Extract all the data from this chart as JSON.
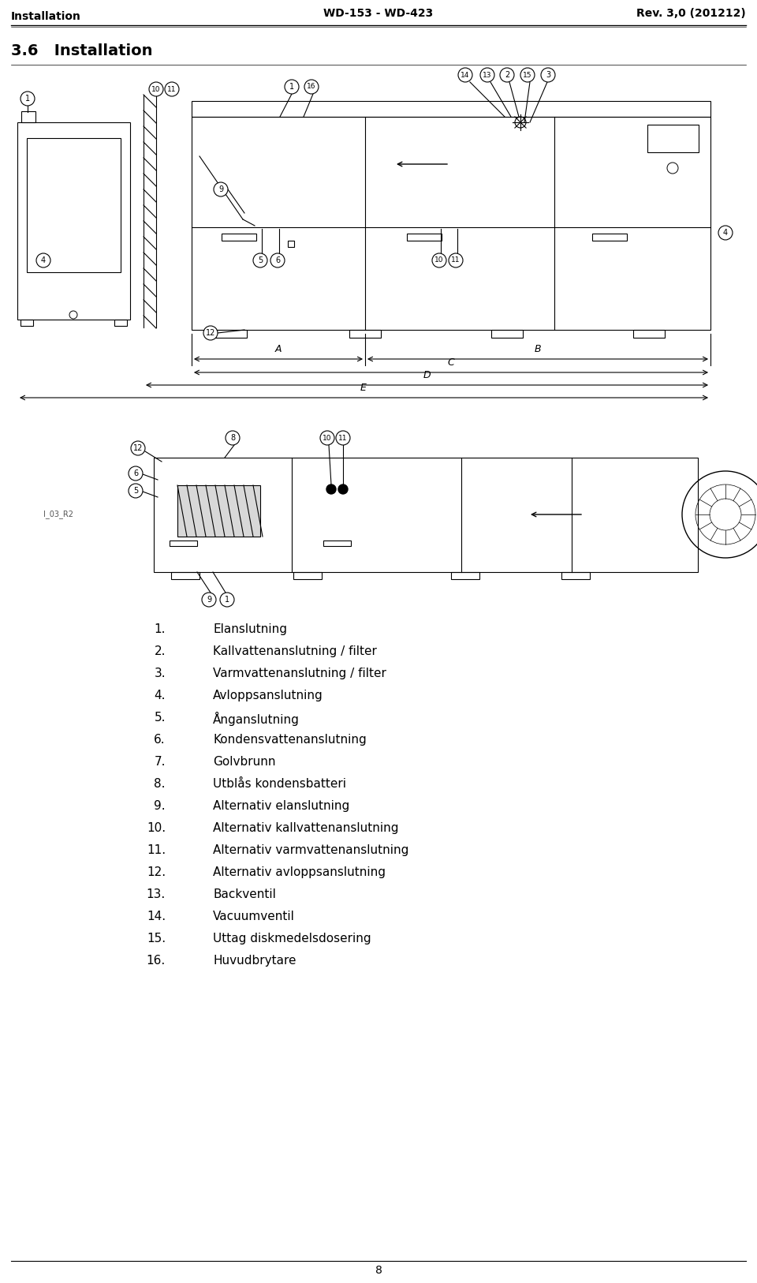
{
  "header_left": "Installation",
  "header_center": "WD-153 - WD-423",
  "header_right": "Rev. 3,0 (201212)",
  "section_title": "3.6   Installation",
  "items": [
    {
      "num": "1.",
      "text": "Elanslutning"
    },
    {
      "num": "2.",
      "text": "Kallvattenanslutning / filter"
    },
    {
      "num": "3.",
      "text": "Varmvattenanslutning / filter"
    },
    {
      "num": "4.",
      "text": "Avloppsanslutning"
    },
    {
      "num": "5.",
      "text": "Ånganslutning"
    },
    {
      "num": "6.",
      "text": "Kondensvattenanslutning"
    },
    {
      "num": "7.",
      "text": "Golvbrunn"
    },
    {
      "num": "8.",
      "text": "Utblås kondensbatteri"
    },
    {
      "num": "9.",
      "text": "Alternativ elanslutning"
    },
    {
      "num": "10.",
      "text": "Alternativ kallvattenanslutning"
    },
    {
      "num": "11.",
      "text": "Alternativ varmvattenanslutning"
    },
    {
      "num": "12.",
      "text": "Alternativ avloppsanslutning"
    },
    {
      "num": "13.",
      "text": "Backventil"
    },
    {
      "num": "14.",
      "text": "Vacuumventil"
    },
    {
      "num": "15.",
      "text": "Uttag diskmedelsdosering"
    },
    {
      "num": "16.",
      "text": "Huvudbrytare"
    }
  ],
  "page_number": "8",
  "bg_color": "#ffffff",
  "text_color": "#000000",
  "image_label": "I_03_R2"
}
